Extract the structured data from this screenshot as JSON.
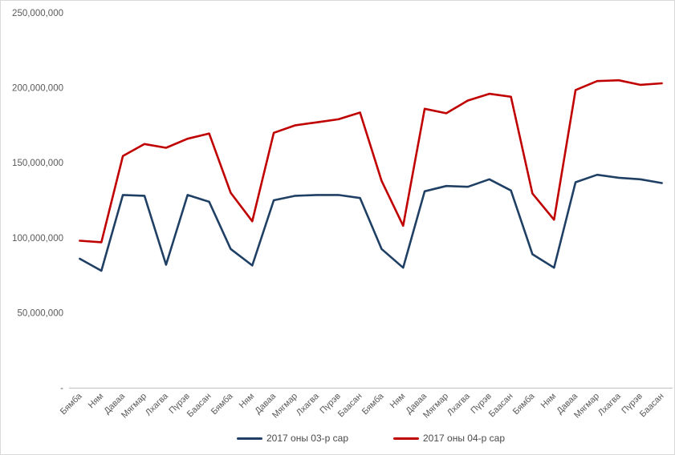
{
  "chart_data": {
    "type": "line",
    "title": "",
    "xlabel": "",
    "ylabel": "",
    "ylim": [
      0,
      250000000
    ],
    "grid": false,
    "legend_position": "bottom",
    "y_ticks": [
      0,
      50000000,
      100000000,
      150000000,
      200000000,
      250000000
    ],
    "y_tick_labels": [
      "-",
      "50,000,000",
      "100,000,000",
      "150,000,000",
      "200,000,000",
      "250,000,000"
    ],
    "categories": [
      "Бямба",
      "Ням",
      "Даваа",
      "Мягмар",
      "Лхагва",
      "Пүрэв",
      "Баасан",
      "Бямба",
      "Ням",
      "Даваа",
      "Мягмар",
      "Лхагва",
      "Пүрэв",
      "Баасан",
      "Бямба",
      "Ням",
      "Даваа",
      "Мягмар",
      "Лхагва",
      "Пүрэв",
      "Баасан",
      "Бямба",
      "Ням",
      "Даваа",
      "Мягмар",
      "Лхагва",
      "Пүрэв",
      "Баасан"
    ],
    "series": [
      {
        "name": "2017 оны 03-р сар",
        "color": "#1F4064",
        "values": [
          86000000,
          78000000,
          128500000,
          128000000,
          82000000,
          128500000,
          124000000,
          92500000,
          81500000,
          125000000,
          128000000,
          128500000,
          128500000,
          126500000,
          92500000,
          80000000,
          131000000,
          134500000,
          134000000,
          139000000,
          131500000,
          89000000,
          80000000,
          137000000,
          142000000,
          140000000,
          139000000,
          136500000
        ]
      },
      {
        "name": "2017 оны 04-р сар",
        "color": "#C00000",
        "values": [
          98000000,
          97000000,
          154500000,
          162500000,
          160000000,
          166000000,
          169500000,
          130000000,
          111000000,
          170000000,
          175000000,
          177000000,
          179000000,
          183500000,
          138000000,
          108000000,
          186000000,
          183000000,
          191500000,
          196000000,
          194000000,
          129500000,
          112000000,
          198500000,
          204500000,
          205000000,
          202000000,
          203000000
        ]
      }
    ],
    "axis_line_color": "#BFBFBF",
    "chart_border_color": "#D9D9D9",
    "tick_label_color": "#595959"
  }
}
